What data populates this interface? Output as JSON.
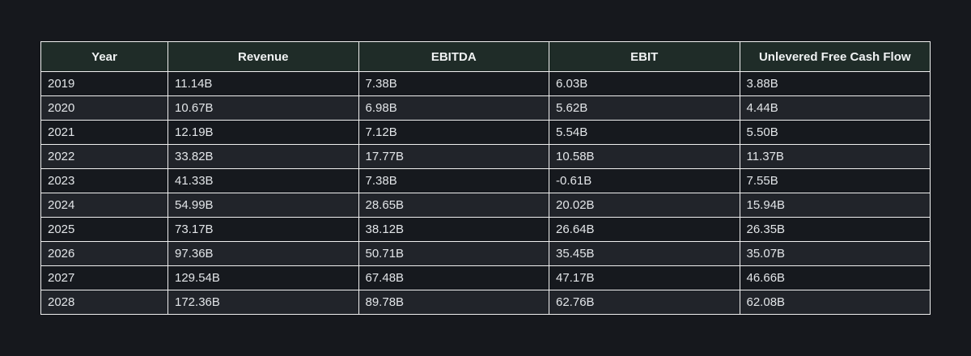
{
  "page": {
    "background": "#16181d"
  },
  "table": {
    "columns": [
      {
        "key": "year",
        "label": "Year"
      },
      {
        "key": "revenue",
        "label": "Revenue"
      },
      {
        "key": "ebitda",
        "label": "EBITDA"
      },
      {
        "key": "ebit",
        "label": "EBIT"
      },
      {
        "key": "ufcf",
        "label": "Unlevered Free Cash Flow"
      }
    ],
    "rows": [
      [
        "2019",
        "11.14B",
        "7.38B",
        "6.03B",
        "3.88B"
      ],
      [
        "2020",
        "10.67B",
        "6.98B",
        "5.62B",
        "4.44B"
      ],
      [
        "2021",
        "12.19B",
        "7.12B",
        "5.54B",
        "5.50B"
      ],
      [
        "2022",
        "33.82B",
        "17.77B",
        "10.58B",
        "11.37B"
      ],
      [
        "2023",
        "41.33B",
        "7.38B",
        "-0.61B",
        "7.55B"
      ],
      [
        "2024",
        "54.99B",
        "28.65B",
        "20.02B",
        "15.94B"
      ],
      [
        "2025",
        "73.17B",
        "38.12B",
        "26.64B",
        "26.35B"
      ],
      [
        "2026",
        "97.36B",
        "50.71B",
        "35.45B",
        "35.07B"
      ],
      [
        "2027",
        "129.54B",
        "67.48B",
        "47.17B",
        "46.66B"
      ],
      [
        "2028",
        "172.36B",
        "89.78B",
        "62.76B",
        "62.08B"
      ]
    ],
    "colors": {
      "page_bg": "#16181d",
      "header_bg": "#1f2c28",
      "header_text": "#f0f2f3",
      "cell_text": "#e2e5e8",
      "row_odd_bg": "#16191e",
      "row_even_bg": "#21242a",
      "border": "#f0f0f0"
    }
  },
  "chart_data": {
    "type": "table",
    "title": "",
    "columns": [
      "Year",
      "Revenue",
      "EBITDA",
      "EBIT",
      "Unlevered Free Cash Flow"
    ],
    "categories": [
      "2019",
      "2020",
      "2021",
      "2022",
      "2023",
      "2024",
      "2025",
      "2026",
      "2027",
      "2028"
    ],
    "series": [
      {
        "name": "Revenue",
        "unit": "B",
        "values": [
          11.14,
          10.67,
          12.19,
          33.82,
          41.33,
          54.99,
          73.17,
          97.36,
          129.54,
          172.36
        ]
      },
      {
        "name": "EBITDA",
        "unit": "B",
        "values": [
          7.38,
          6.98,
          7.12,
          17.77,
          7.38,
          28.65,
          38.12,
          50.71,
          67.48,
          89.78
        ]
      },
      {
        "name": "EBIT",
        "unit": "B",
        "values": [
          6.03,
          5.62,
          5.54,
          10.58,
          -0.61,
          20.02,
          26.64,
          35.45,
          47.17,
          62.76
        ]
      },
      {
        "name": "Unlevered Free Cash Flow",
        "unit": "B",
        "values": [
          3.88,
          4.44,
          5.5,
          11.37,
          7.55,
          15.94,
          26.35,
          35.07,
          46.66,
          62.08
        ]
      }
    ]
  }
}
